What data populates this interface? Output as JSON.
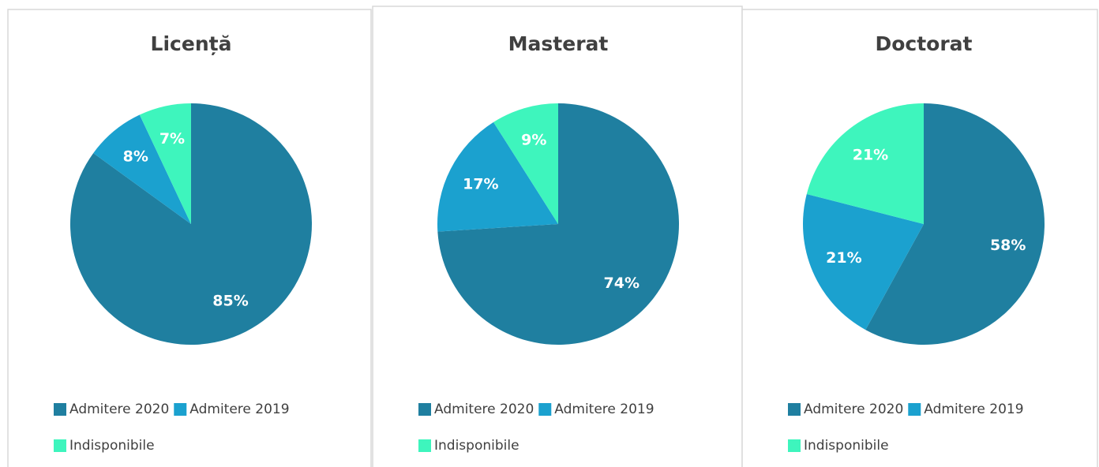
{
  "chart_data": [
    {
      "type": "pie",
      "title": "Licență",
      "categories": [
        "Admitere 2020",
        "Admitere 2019",
        "Indisponibile"
      ],
      "values": [
        85,
        8,
        7
      ],
      "value_labels": [
        "85%",
        "8%",
        "7%"
      ],
      "colors": [
        "#1f7fa0",
        "#1ba1cf",
        "#3ef5bd"
      ]
    },
    {
      "type": "pie",
      "title": "Masterat",
      "categories": [
        "Admitere 2020",
        "Admitere 2019",
        "Indisponibile"
      ],
      "values": [
        74,
        17,
        9
      ],
      "value_labels": [
        "74%",
        "17%",
        "9%"
      ],
      "colors": [
        "#1f7fa0",
        "#1ba1cf",
        "#3ef5bd"
      ]
    },
    {
      "type": "pie",
      "title": "Doctorat",
      "categories": [
        "Admitere 2020",
        "Admitere 2019",
        "Indisponibile"
      ],
      "values": [
        58,
        21,
        21
      ],
      "value_labels": [
        "58%",
        "21%",
        "21%"
      ],
      "colors": [
        "#1f7fa0",
        "#1ba1cf",
        "#3ef5bd"
      ]
    }
  ]
}
